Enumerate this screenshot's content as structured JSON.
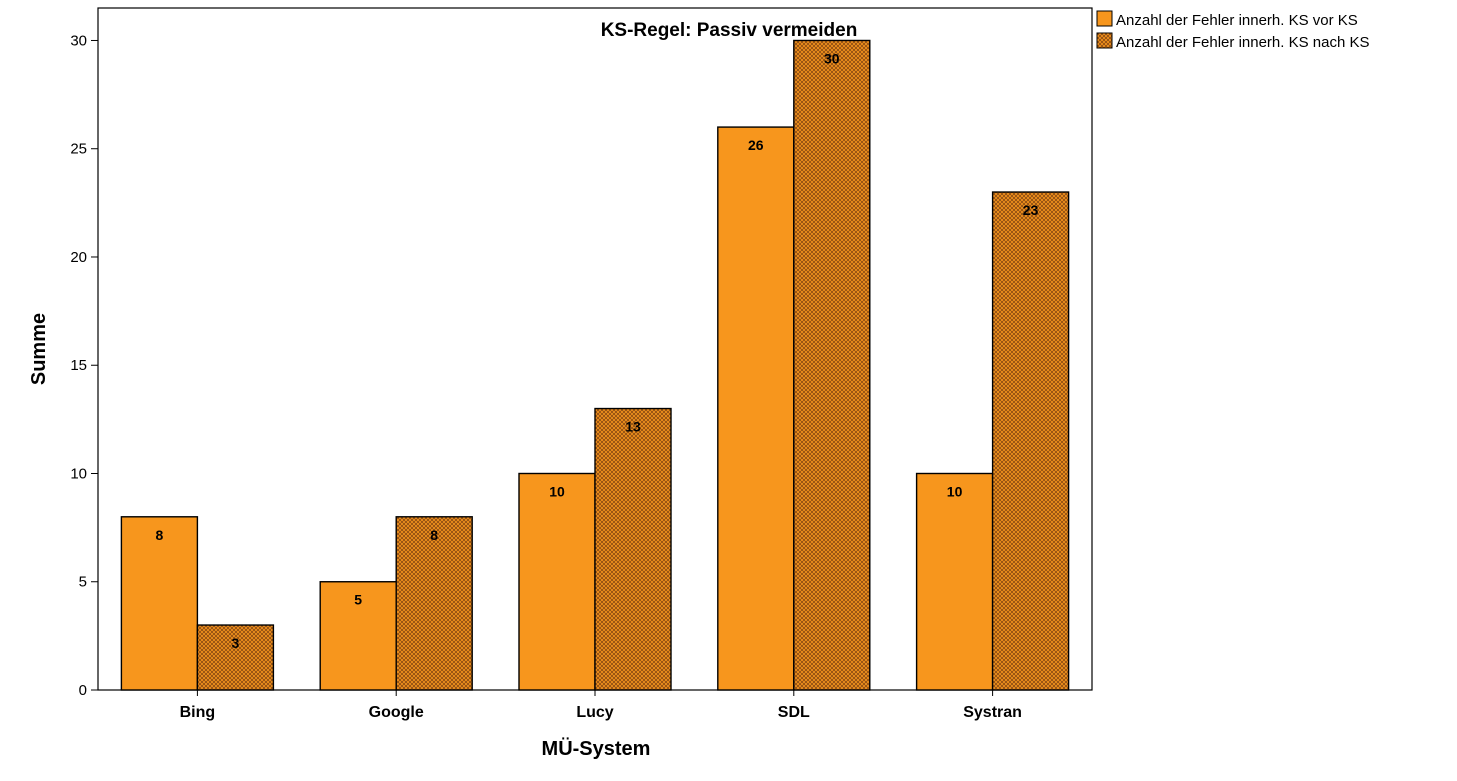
{
  "chart_data": {
    "type": "bar",
    "title": "KS-Regel: Passiv vermeiden",
    "xlabel": "MÜ-System",
    "ylabel": "Summe",
    "categories": [
      "Bing",
      "Google",
      "Lucy",
      "SDL",
      "Systran"
    ],
    "series": [
      {
        "name": "Anzahl der Fehler innerh. KS vor KS",
        "values": [
          8,
          5,
          10,
          26,
          10
        ],
        "color": "#f7961d",
        "pattern": "solid"
      },
      {
        "name": "Anzahl der Fehler innerh. KS nach KS",
        "values": [
          3,
          8,
          13,
          30,
          23
        ],
        "color": "#f7961d",
        "pattern": "crosshatch"
      }
    ],
    "ylim": [
      0,
      31.5
    ],
    "yticks": [
      0,
      5,
      10,
      15,
      20,
      25,
      30
    ],
    "grid": false,
    "legend_position": "top-right outside plot",
    "data_labels": true
  }
}
